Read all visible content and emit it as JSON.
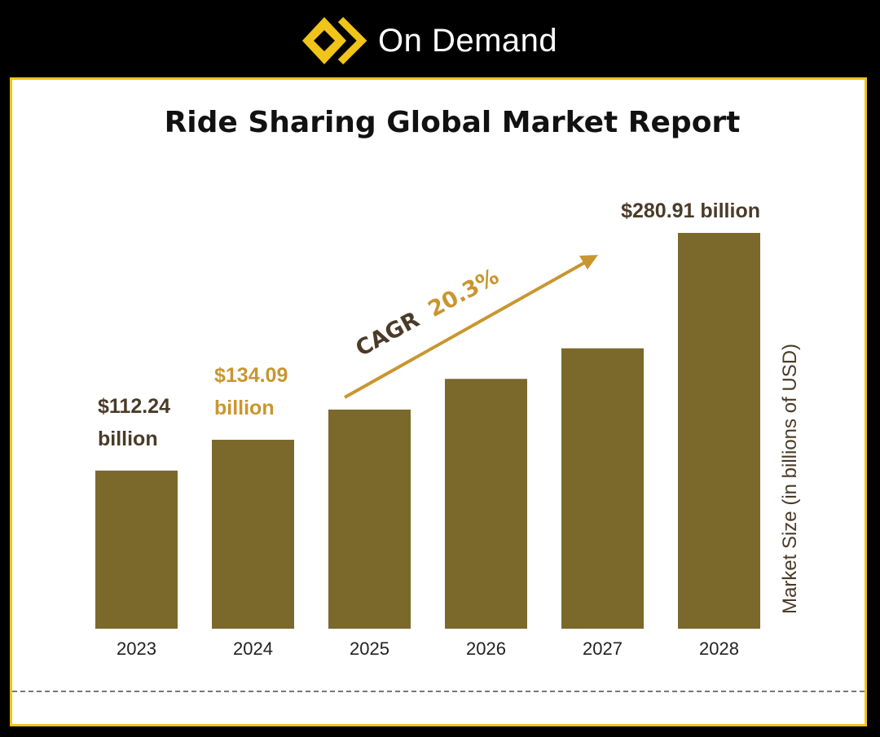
{
  "brand": {
    "name": "On Demand",
    "logo_icon": "diamond-chevron-logo-icon"
  },
  "colors": {
    "bar": "#7b692c",
    "accent": "#c9962f",
    "dark_text": "#4a3b28",
    "frame": "#f0c419"
  },
  "chart_data": {
    "type": "bar",
    "title": "Ride Sharing Global Market Report",
    "categories": [
      "2023",
      "2024",
      "2025",
      "2026",
      "2027",
      "2028"
    ],
    "values": [
      112.24,
      134.09,
      155.5,
      177.3,
      199.0,
      280.91
    ],
    "ylabel": "Market Size (in billions of USD)",
    "xlabel": "",
    "ylim": [
      0,
      280.91
    ],
    "data_labels": [
      {
        "category": "2023",
        "line1": "$112.24",
        "line2": "billion"
      },
      {
        "category": "2024",
        "line1": "$134.09",
        "line2": "billion"
      },
      {
        "category": "2028",
        "line1": "$280.91 billion"
      }
    ],
    "annotation": {
      "prefix": "CAGR",
      "value": "20.3%"
    }
  }
}
